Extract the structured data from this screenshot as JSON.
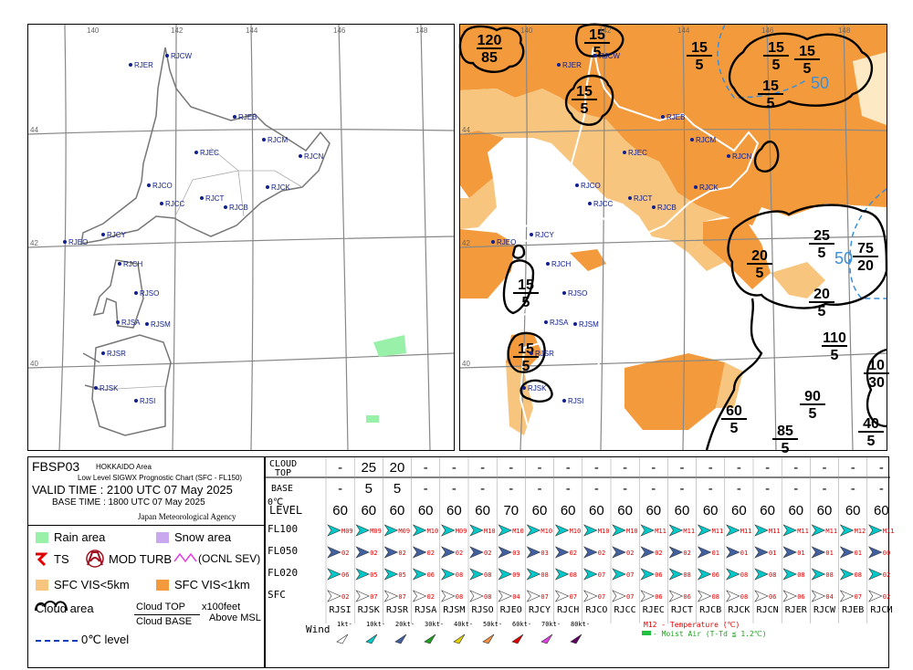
{
  "chart_id": "FBSP03",
  "area": "HOKKAIDO Area",
  "subtitle": "Low Level SIGWX Prognostic Chart (SFC - FL150)",
  "valid_time": "VALID TIME : 2100 UTC 07 May 2025",
  "base_time": "BASE TIME : 1800 UTC 07 May 2025",
  "agency": "Japan Meteorological Agency",
  "lon_labels": [
    "140",
    "142",
    "144",
    "146",
    "148"
  ],
  "lat_labels": [
    "44",
    "42",
    "40"
  ],
  "stations_map": [
    "RJCW",
    "RJER",
    "RJEB",
    "RJCM",
    "RJCN",
    "RJEC",
    "RJCO",
    "RJCK",
    "RJCT",
    "RJCB",
    "RJCC",
    "RJCY",
    "RJEO",
    "RJCH",
    "RJSO",
    "RJSA",
    "RJSM",
    "RJSR",
    "RJSK",
    "RJSI"
  ],
  "clouds": [
    {
      "top": "120",
      "base": "85"
    },
    {
      "top": "15",
      "base": "5"
    },
    {
      "top": "15",
      "base": "5"
    },
    {
      "top": "15",
      "base": "5"
    },
    {
      "top": "15",
      "base": "5"
    },
    {
      "top": "15",
      "base": "5"
    },
    {
      "top": "25",
      "base": "5"
    },
    {
      "top": "20",
      "base": "5"
    },
    {
      "top": "75",
      "base": "20"
    },
    {
      "top": "15",
      "base": "5"
    },
    {
      "top": "20",
      "base": "5"
    },
    {
      "top": "15",
      "base": "5"
    },
    {
      "top": "110",
      "base": "5"
    },
    {
      "top": "15",
      "base": "5"
    },
    {
      "top": "10",
      "base": "30"
    },
    {
      "top": "90",
      "base": "5"
    },
    {
      "top": "60",
      "base": "5"
    },
    {
      "top": "85",
      "base": "5"
    },
    {
      "top": "40",
      "base": "5"
    }
  ],
  "freezing_labels": [
    "50",
    "50"
  ],
  "legend": {
    "rain": "Rain area",
    "snow": "Snow area",
    "ts": "TS",
    "turb": "MOD TURB",
    "sev": "(OCNL SEV)",
    "vis5": "SFC VIS<5km",
    "vis1": "SFC VIS<1km",
    "cloud": "Cloud area",
    "cloud_top": "Cloud TOP",
    "cloud_base": "Cloud BASE",
    "units": "x100feet",
    "units2": "Above MSL",
    "zero": "0℃ level",
    "ts_icon": "lightning-icon",
    "turb_icon": "turbulence-icon"
  },
  "table": {
    "hdr_cloud_top": "CLOUD TOP",
    "hdr_base": "BASE",
    "hdr_level": "0℃ LEVEL",
    "rows": [
      "FL100",
      "FL050",
      "FL020",
      "SFC"
    ],
    "stations": [
      "RJSI",
      "RJSK",
      "RJSR",
      "RJSA",
      "RJSM",
      "RJSO",
      "RJEO",
      "RJCY",
      "RJCH",
      "RJCO",
      "RJCC",
      "RJEC",
      "RJCT",
      "RJCB",
      "RJCK",
      "RJCN",
      "RJER",
      "RJCW",
      "RJEB",
      "RJCM"
    ],
    "tops": [
      "-",
      "25",
      "20",
      "-",
      "-",
      "-",
      "-",
      "-",
      "-",
      "-",
      "-",
      "-",
      "-",
      "-",
      "-",
      "-",
      "-",
      "-",
      "-",
      "-"
    ],
    "bases": [
      "-",
      "5",
      "5",
      "-",
      "-",
      "-",
      "-",
      "-",
      "-",
      "-",
      "-",
      "-",
      "-",
      "-",
      "-",
      "-",
      "-",
      "-",
      "-",
      "-"
    ],
    "levels": [
      "60",
      "60",
      "60",
      "60",
      "60",
      "60",
      "70",
      "60",
      "60",
      "60",
      "60",
      "60",
      "60",
      "60",
      "60",
      "60",
      "60",
      "60",
      "60",
      "60"
    ],
    "fl100": [
      "M09",
      "M09",
      "M09",
      "M10",
      "M09",
      "M10",
      "M10",
      "M10",
      "M10",
      "M10",
      "M10",
      "M11",
      "M11",
      "M11",
      "M11",
      "M11",
      "M11",
      "M11",
      "M12",
      "M11"
    ],
    "fl050": [
      "02",
      "02",
      "02",
      "02",
      "02",
      "02",
      "03",
      "03",
      "02",
      "02",
      "02",
      "02",
      "02",
      "01",
      "01",
      "01",
      "01",
      "01",
      "01",
      "00"
    ],
    "fl020": [
      "06",
      "05",
      "05",
      "06",
      "08",
      "08",
      "09",
      "08",
      "08",
      "07",
      "07",
      "06",
      "08",
      "06",
      "08",
      "08",
      "08",
      "08",
      "08",
      "02"
    ],
    "sfc": [
      "02",
      "07",
      "07",
      "02",
      "08",
      "08",
      "04",
      "07",
      "07",
      "07",
      "07",
      "06",
      "06",
      "08",
      "08",
      "06",
      "06",
      "04",
      "07",
      "02"
    ],
    "wind_label": "Wind",
    "wind_keys": [
      "1kt-",
      "10kt-",
      "20kt-",
      "30kt-",
      "40kt-",
      "50kt-",
      "60kt-",
      "70kt-",
      "80kt-"
    ],
    "wind_colors": [
      "#ffffff",
      "#00c8c8",
      "#4060a0",
      "#20a020",
      "#e0d000",
      "#f09040",
      "#e00000",
      "#e040e0",
      "#600060"
    ],
    "temp_note": "M12 - Temperature (℃)",
    "moist_note": "- Moist Air (T-Td ≦ 1.2℃)"
  },
  "colors": {
    "vis5": "#f7c57e",
    "vis1": "#f39a3c",
    "rain": "#99f0a9",
    "snow": "#c9a8f0",
    "freezing": "#3a8fd8"
  }
}
